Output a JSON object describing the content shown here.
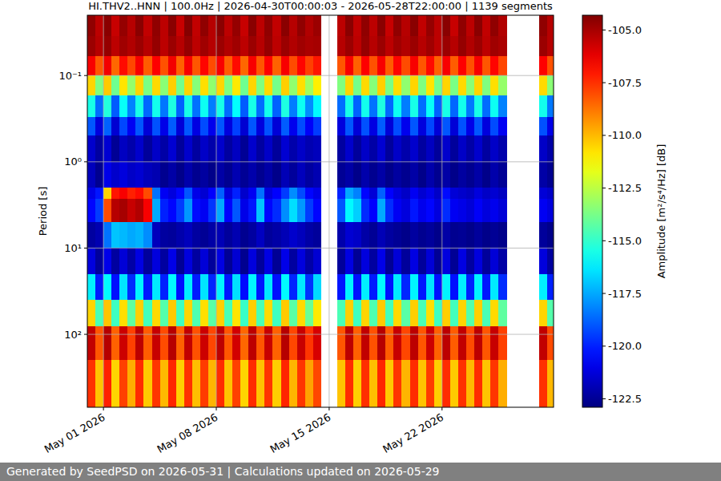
{
  "chart_data": {
    "type": "heatmap",
    "title": "HI.THV2..HNN | 100.0Hz | 2026-04-30T00:00:03 - 2026-05-28T22:00:00 | 1139 segments",
    "y_label": "Period [s]",
    "footer": "Generated by SeedPSD on 2026-05-31 | Calculations updated on 2026-05-29",
    "log": "y",
    "grid": true,
    "xlim": [
      "2026-04-30T00:00:03",
      "2026-05-28T22:00:00"
    ],
    "xticks": [
      {
        "value": "2026-05-01",
        "label": "May 01 2026"
      },
      {
        "value": "2026-05-08",
        "label": "May 08 2026"
      },
      {
        "value": "2026-05-15",
        "label": "May 15 2026"
      },
      {
        "value": "2026-05-22",
        "label": "May 22 2026"
      }
    ],
    "ylim": [
      700,
      0.02
    ],
    "yticks": [
      {
        "value": 0.1,
        "label": "10⁻¹"
      },
      {
        "value": 1,
        "label": "10⁰"
      },
      {
        "value": 10,
        "label": "10¹"
      },
      {
        "value": 100,
        "label": "10²"
      }
    ],
    "x_edges": [
      "2026-04-30T00:00",
      "2026-04-30T12:00",
      "2026-05-01T00:00",
      "2026-05-01T12:00",
      "2026-05-02T00:00",
      "2026-05-02T12:00",
      "2026-05-03T00:00",
      "2026-05-03T12:00",
      "2026-05-04T00:00",
      "2026-05-04T12:00",
      "2026-05-05T00:00",
      "2026-05-05T12:00",
      "2026-05-06T00:00",
      "2026-05-06T12:00",
      "2026-05-07T00:00",
      "2026-05-07T12:00",
      "2026-05-08T00:00",
      "2026-05-08T12:00",
      "2026-05-09T00:00",
      "2026-05-09T12:00",
      "2026-05-10T00:00",
      "2026-05-10T12:00",
      "2026-05-11T00:00",
      "2026-05-11T12:00",
      "2026-05-12T00:00",
      "2026-05-12T12:00",
      "2026-05-13T00:00",
      "2026-05-13T12:00",
      "2026-05-14T00:00",
      "2026-05-14T12:00",
      "2026-05-15T00:00",
      "2026-05-15T12:00",
      "2026-05-16T00:00",
      "2026-05-16T12:00",
      "2026-05-17T00:00",
      "2026-05-17T12:00",
      "2026-05-18T00:00",
      "2026-05-18T12:00",
      "2026-05-19T00:00",
      "2026-05-19T12:00",
      "2026-05-20T00:00",
      "2026-05-20T12:00",
      "2026-05-21T00:00",
      "2026-05-21T12:00",
      "2026-05-22T00:00",
      "2026-05-22T12:00",
      "2026-05-23T00:00",
      "2026-05-23T12:00",
      "2026-05-24T00:00",
      "2026-05-24T12:00",
      "2026-05-25T00:00",
      "2026-05-25T12:00",
      "2026-05-26T00:00",
      "2026-05-26T12:00",
      "2026-05-27T00:00",
      "2026-05-27T12:00",
      "2026-05-28T00:00",
      "2026-05-28T12:00",
      "2026-05-29T00:00"
    ],
    "y_edges": [
      0.02,
      0.035,
      0.06,
      0.1,
      0.17,
      0.3,
      0.5,
      1,
      2,
      2.7,
      5,
      10,
      20,
      40,
      80,
      200,
      700
    ],
    "cells": [
      [
        -104.6,
        -105.4,
        -104.5,
        -105.6,
        -104.7,
        -105.3,
        -104.5,
        -105.5,
        -104.6,
        -105.4,
        -104.5,
        -105.6,
        -104.4,
        -105.5,
        -104.6,
        -105.3,
        -104.5,
        -105.4,
        -104.7,
        -105.6,
        -104.5,
        -105.4,
        -104.6,
        -105.5,
        -104.5,
        -105.3,
        -104.6,
        -105.2,
        -104.8,
        null,
        null,
        -105.4,
        -104.5,
        -105.5,
        -104.6,
        -105.4,
        -104.5,
        -105.6,
        -104.6,
        -105.3,
        -104.5,
        -105.5,
        -104.7,
        -105.4,
        -104.5,
        -105.6,
        -104.6,
        -105.4,
        -104.5,
        -105.5,
        -104.6,
        -105.2,
        null,
        null,
        null,
        null,
        -104.6,
        -105.3
      ],
      [
        -104.8,
        -105.3,
        -104.7,
        -105.4,
        -104.9,
        -105.2,
        -104.8,
        -105.3,
        -104.7,
        -105.4,
        -104.8,
        -105.3,
        -104.7,
        -105.4,
        -104.9,
        -105.3,
        -104.8,
        -105.2,
        -104.9,
        -105.4,
        -104.8,
        -105.3,
        -104.7,
        -105.4,
        -104.8,
        -105.2,
        -104.9,
        -105.1,
        -105.0,
        null,
        null,
        -105.3,
        -104.8,
        -105.4,
        -104.7,
        -105.3,
        -104.8,
        -105.4,
        -104.9,
        -105.2,
        -104.8,
        -105.3,
        -104.9,
        -105.4,
        -104.8,
        -105.3,
        -104.7,
        -105.2,
        -104.8,
        -105.4,
        -104.9,
        -105.1,
        null,
        null,
        null,
        null,
        -104.8,
        -105.3
      ],
      [
        -106.5,
        -108.2,
        -106.4,
        -108.5,
        -106.8,
        -107.9,
        -106.5,
        -108.3,
        -106.6,
        -108.1,
        -106.4,
        -108.4,
        -106.5,
        -108.2,
        -106.7,
        -108.0,
        -106.5,
        -108.3,
        -106.8,
        -108.5,
        -106.5,
        -108.2,
        -106.6,
        -108.4,
        -106.5,
        -108.0,
        -106.7,
        -107.8,
        -107.0,
        null,
        null,
        -108.2,
        -106.5,
        -108.4,
        -106.6,
        -108.1,
        -106.5,
        -108.3,
        -106.7,
        -108.0,
        -106.5,
        -108.2,
        -106.8,
        -108.4,
        -106.5,
        -108.3,
        -106.6,
        -108.1,
        -106.5,
        -108.2,
        -106.7,
        -107.9,
        null,
        null,
        null,
        null,
        -106.6,
        -108.1
      ],
      [
        -110.5,
        -113.6,
        -110.3,
        -113.9,
        -110.8,
        -113.2,
        -110.5,
        -113.7,
        -110.6,
        -113.4,
        -110.4,
        -113.8,
        -110.5,
        -113.5,
        -110.7,
        -113.3,
        -110.5,
        -113.6,
        -110.9,
        -113.9,
        -110.5,
        -113.6,
        -110.6,
        -113.8,
        -110.4,
        -113.3,
        -110.7,
        -113.0,
        -111.0,
        null,
        null,
        -113.6,
        -110.5,
        -113.8,
        -110.6,
        -113.5,
        -110.4,
        -113.7,
        -110.7,
        -113.3,
        -110.5,
        -113.6,
        -110.8,
        -113.8,
        -110.5,
        -113.7,
        -110.6,
        -113.4,
        -110.5,
        -113.6,
        -110.7,
        -113.2,
        null,
        null,
        null,
        null,
        -110.6,
        -113.4
      ],
      [
        -115.5,
        -118.6,
        -115.3,
        -118.9,
        -115.8,
        -118.2,
        -115.5,
        -118.7,
        -115.6,
        -118.4,
        -115.4,
        -118.8,
        -115.5,
        -118.5,
        -115.7,
        -118.3,
        -115.5,
        -118.6,
        -115.9,
        -118.9,
        -115.5,
        -118.6,
        -115.6,
        -118.8,
        -115.4,
        -118.3,
        -115.7,
        -118.0,
        -116.0,
        null,
        null,
        -118.6,
        -115.5,
        -118.8,
        -115.6,
        -118.5,
        -115.4,
        -118.7,
        -115.7,
        -118.3,
        -115.5,
        -118.6,
        -115.8,
        -118.8,
        -115.5,
        -118.7,
        -115.6,
        -118.4,
        -115.5,
        -118.6,
        -115.7,
        -118.2,
        null,
        null,
        null,
        null,
        -115.6,
        -118.4
      ],
      [
        -119.0,
        -121.2,
        -118.8,
        -121.4,
        -119.3,
        -120.8,
        -119.0,
        -121.3,
        -119.1,
        -121.0,
        -118.9,
        -121.3,
        -119.0,
        -121.1,
        -119.2,
        -120.9,
        -119.0,
        -121.2,
        -119.4,
        -121.4,
        -119.0,
        -121.2,
        -119.1,
        -121.3,
        -118.9,
        -120.9,
        -119.2,
        -120.7,
        -119.5,
        null,
        null,
        -121.2,
        -119.0,
        -121.3,
        -119.1,
        -121.1,
        -118.9,
        -121.3,
        -119.2,
        -120.9,
        -119.0,
        -121.2,
        -119.3,
        -121.3,
        -119.0,
        -121.3,
        -119.1,
        -121.0,
        -119.0,
        -121.2,
        -119.2,
        -120.8,
        null,
        null,
        null,
        null,
        -119.1,
        -121.0
      ],
      [
        -121.5,
        -122.3,
        -121.4,
        -122.5,
        -121.7,
        -122.1,
        -121.5,
        -122.4,
        -121.6,
        -122.2,
        -121.4,
        -122.4,
        -121.5,
        -122.3,
        -121.6,
        -122.1,
        -121.5,
        -122.3,
        -121.7,
        -122.5,
        -121.5,
        -122.3,
        -121.6,
        -122.4,
        -121.4,
        -122.1,
        -121.6,
        -122.0,
        -121.8,
        null,
        null,
        -122.3,
        -121.5,
        -122.4,
        -121.6,
        -122.2,
        -121.4,
        -122.4,
        -121.6,
        -122.1,
        -121.5,
        -122.3,
        -121.7,
        -122.4,
        -121.5,
        -122.4,
        -121.6,
        -122.2,
        -121.5,
        -122.3,
        -121.6,
        -122.1,
        null,
        null,
        null,
        null,
        -121.6,
        -122.2
      ],
      [
        -121.8,
        -122.6,
        -121.0,
        -121.5,
        -121.2,
        -121.6,
        -121.4,
        -121.8,
        -122.0,
        -122.6,
        -122.2,
        -122.7,
        -122.1,
        -122.6,
        -122.3,
        -122.7,
        -122.2,
        -122.6,
        -122.0,
        -122.5,
        -122.1,
        -122.6,
        -122.2,
        -122.7,
        -121.9,
        -122.4,
        -121.8,
        -122.3,
        -122.0,
        null,
        null,
        -122.5,
        -122.2,
        -122.7,
        -122.1,
        -122.6,
        -122.2,
        -122.7,
        -122.3,
        -122.6,
        -122.2,
        -122.7,
        -122.1,
        -122.6,
        -122.2,
        -122.7,
        -122.3,
        -122.6,
        -122.2,
        -122.7,
        -122.1,
        -122.5,
        null,
        null,
        null,
        null,
        -122.2,
        -122.6
      ],
      [
        -121.0,
        -120.2,
        -110.5,
        -107.0,
        -106.5,
        -107.2,
        -106.8,
        -108.0,
        -118.5,
        -120.8,
        -121.2,
        -120.5,
        -119.0,
        -121.0,
        -121.4,
        -120.6,
        -118.8,
        -121.2,
        -120.0,
        -121.5,
        -120.8,
        -118.5,
        -121.2,
        -120.6,
        -119.5,
        -118.0,
        -119.2,
        -120.5,
        -121.0,
        null,
        null,
        -120.0,
        -117.5,
        -118.2,
        -120.5,
        -121.3,
        -118.8,
        -120.6,
        -121.2,
        -121.6,
        -120.8,
        -121.4,
        -121.0,
        -121.6,
        -120.4,
        -121.3,
        -121.5,
        -121.7,
        -121.2,
        -121.6,
        -121.4,
        -121.7,
        null,
        null,
        null,
        null,
        -121.3,
        -121.6
      ],
      [
        -120.5,
        -119.5,
        -108.0,
        -105.3,
        -105.0,
        -105.6,
        -105.2,
        -106.5,
        -117.5,
        -120.0,
        -120.5,
        -119.5,
        -117.8,
        -120.4,
        -120.8,
        -119.6,
        -117.5,
        -120.6,
        -119.0,
        -121.0,
        -120.2,
        -117.0,
        -120.5,
        -119.8,
        -118.0,
        -116.5,
        -117.8,
        -119.5,
        -120.5,
        null,
        null,
        -119.0,
        -116.0,
        -116.8,
        -119.8,
        -120.6,
        -117.5,
        -119.8,
        -120.8,
        -121.2,
        -120.2,
        -120.9,
        -120.5,
        -121.2,
        -119.8,
        -120.8,
        -121.0,
        -121.3,
        -120.7,
        -121.2,
        -120.9,
        -121.3,
        null,
        null,
        null,
        null,
        -120.8,
        -121.2
      ],
      [
        -122.3,
        -122.0,
        -118.5,
        -117.0,
        -117.2,
        -117.5,
        -117.3,
        -118.0,
        -121.8,
        -122.3,
        -122.4,
        -122.1,
        -121.8,
        -122.3,
        -122.5,
        -122.2,
        -121.9,
        -122.4,
        -122.0,
        -122.6,
        -122.3,
        -121.7,
        -122.4,
        -122.2,
        -121.9,
        -121.5,
        -121.8,
        -122.2,
        -122.4,
        null,
        null,
        -122.1,
        -121.4,
        -121.6,
        -122.2,
        -122.5,
        -121.9,
        -122.3,
        -122.5,
        -122.7,
        -122.3,
        -122.6,
        -122.4,
        -122.7,
        -122.2,
        -122.6,
        -122.5,
        -122.7,
        -122.4,
        -122.7,
        -122.5,
        -122.7,
        null,
        null,
        null,
        null,
        -122.4,
        -122.7
      ],
      [
        -121.2,
        -122.4,
        -121.0,
        -122.3,
        -121.3,
        -122.2,
        -121.1,
        -122.4,
        -121.2,
        -122.3,
        -121.0,
        -122.5,
        -121.2,
        -122.3,
        -121.3,
        -122.4,
        -121.1,
        -122.5,
        -121.4,
        -122.6,
        -121.2,
        -122.4,
        -121.1,
        -122.5,
        -121.0,
        -122.3,
        -121.2,
        -122.2,
        -121.4,
        null,
        null,
        -122.4,
        -121.1,
        -122.5,
        -121.2,
        -122.3,
        -121.0,
        -122.5,
        -121.3,
        -122.4,
        -121.1,
        -122.4,
        -121.3,
        -122.5,
        -121.2,
        -122.5,
        -121.1,
        -122.3,
        -121.2,
        -122.4,
        -121.3,
        -122.2,
        null,
        null,
        null,
        null,
        -121.2,
        -122.3
      ],
      [
        -116.2,
        -120.1,
        -116.0,
        -120.3,
        -116.4,
        -119.8,
        -116.1,
        -120.2,
        -116.3,
        -120.0,
        -116.0,
        -120.3,
        -116.2,
        -120.1,
        -116.4,
        -119.9,
        -116.1,
        -120.2,
        -116.5,
        -120.4,
        -116.1,
        -120.2,
        -116.3,
        -120.3,
        -116.0,
        -119.9,
        -116.3,
        -119.7,
        -116.6,
        null,
        null,
        -120.2,
        -116.1,
        -120.3,
        -116.2,
        -120.1,
        -116.0,
        -120.3,
        -116.3,
        -119.9,
        -116.1,
        -120.2,
        -116.4,
        -120.3,
        -116.1,
        -120.3,
        -116.2,
        -120.0,
        -116.1,
        -120.2,
        -116.3,
        -119.8,
        null,
        null,
        null,
        null,
        -116.2,
        -120.0
      ],
      [
        -110.5,
        -114.6,
        -110.2,
        -114.8,
        -110.7,
        -114.2,
        -110.4,
        -114.7,
        -110.6,
        -114.4,
        -110.3,
        -114.8,
        -110.5,
        -114.5,
        -110.7,
        -114.3,
        -110.4,
        -114.6,
        -110.8,
        -114.9,
        -110.4,
        -114.6,
        -110.6,
        -114.8,
        -110.3,
        -114.3,
        -110.6,
        -114.0,
        -110.9,
        null,
        null,
        -114.6,
        -110.4,
        -114.8,
        -110.5,
        -114.5,
        -110.3,
        -114.7,
        -110.6,
        -114.3,
        -110.4,
        -114.6,
        -110.7,
        -114.8,
        -110.4,
        -114.7,
        -110.5,
        -114.4,
        -110.4,
        -114.6,
        -110.6,
        -114.2,
        null,
        null,
        null,
        null,
        -110.5,
        -114.4
      ],
      [
        -105.5,
        -108.2,
        -105.3,
        -108.4,
        -105.7,
        -107.8,
        -105.4,
        -108.3,
        -105.6,
        -108.0,
        -105.3,
        -108.4,
        -105.5,
        -108.1,
        -105.7,
        -107.9,
        -105.4,
        -108.2,
        -105.8,
        -108.5,
        -105.4,
        -108.2,
        -105.6,
        -108.4,
        -105.3,
        -107.9,
        -105.6,
        -107.6,
        -105.9,
        null,
        null,
        -108.2,
        -105.4,
        -108.4,
        -105.5,
        -108.1,
        -105.3,
        -108.3,
        -105.6,
        -107.9,
        -105.4,
        -108.2,
        -105.7,
        -108.4,
        -105.4,
        -108.3,
        -105.5,
        -108.0,
        -105.4,
        -108.2,
        -105.6,
        -107.8,
        null,
        null,
        null,
        null,
        -105.5,
        -108.0
      ],
      [
        -107.5,
        -110.2,
        -107.2,
        -110.5,
        -107.8,
        -109.8,
        -107.4,
        -110.3,
        -107.6,
        -110.0,
        -107.3,
        -110.4,
        -107.5,
        -110.1,
        -107.7,
        -109.9,
        -107.4,
        -110.2,
        -107.8,
        -110.5,
        -107.4,
        -110.2,
        -107.6,
        -110.4,
        -107.3,
        -109.9,
        -107.6,
        -109.6,
        -107.9,
        null,
        null,
        -110.2,
        -107.4,
        -110.4,
        -107.5,
        -110.1,
        -107.3,
        -110.3,
        -107.6,
        -109.9,
        -107.4,
        -110.2,
        -107.7,
        -110.4,
        -107.4,
        -110.3,
        -107.5,
        -110.0,
        -107.4,
        -110.2,
        -107.6,
        -109.8,
        null,
        null,
        null,
        null,
        -107.5,
        -110.0
      ]
    ],
    "colorbar": {
      "title": "Amplitude [m²/s⁴/Hz] [dB]",
      "lim": [
        -122.9,
        -104.3
      ],
      "ticks": [
        {
          "value": -105,
          "label": "-105.0"
        },
        {
          "value": -107.5,
          "label": "-107.5"
        },
        {
          "value": -110,
          "label": "-110.0"
        },
        {
          "value": -112.5,
          "label": "-112.5"
        },
        {
          "value": -115,
          "label": "-115.0"
        },
        {
          "value": -117.5,
          "label": "-117.5"
        },
        {
          "value": -120,
          "label": "-120.0"
        },
        {
          "value": -122.5,
          "label": "-122.5"
        }
      ]
    }
  }
}
